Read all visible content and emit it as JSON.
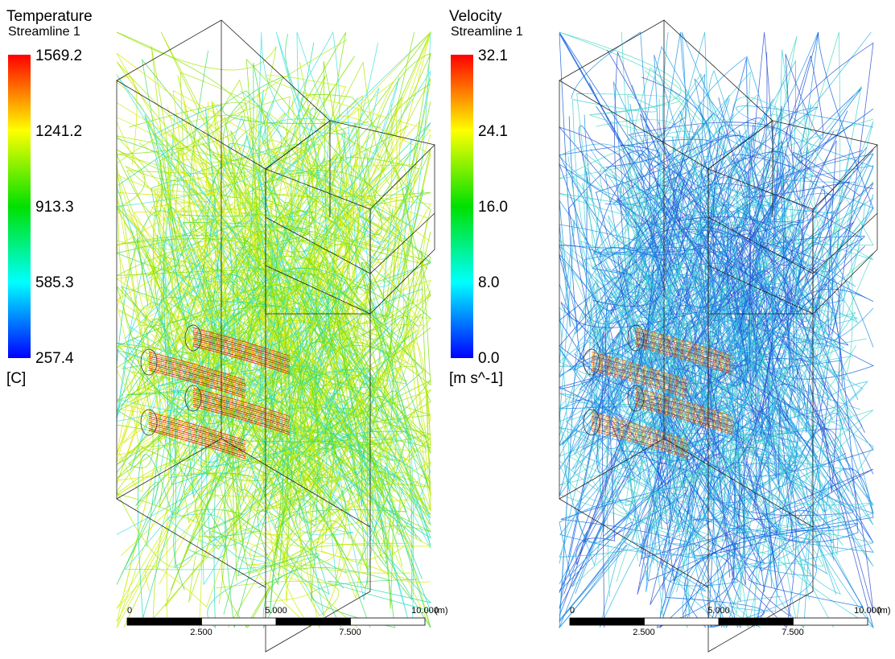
{
  "panels": [
    {
      "title": "Temperature",
      "subtitle": "Streamline 1",
      "legend": {
        "labels": [
          "1569.2",
          "1241.2",
          "913.3",
          "585.3",
          "257.4"
        ],
        "unit": "[C]"
      },
      "scale_bar": {
        "top_labels": [
          "0",
          "5.000",
          "10.000"
        ],
        "unit": "(m)",
        "bottom_labels": [
          "2.500",
          "7.500"
        ]
      }
    },
    {
      "title": "Velocity",
      "subtitle": "Streamline 1",
      "legend": {
        "labels": [
          "32.1",
          "24.1",
          "16.0",
          "8.0",
          "0.0"
        ],
        "unit": "[m s^-1]"
      },
      "scale_bar": {
        "top_labels": [
          "0",
          "5.000",
          "10.000"
        ],
        "unit": "(m)",
        "bottom_labels": [
          "2.500",
          "7.500"
        ]
      }
    }
  ]
}
